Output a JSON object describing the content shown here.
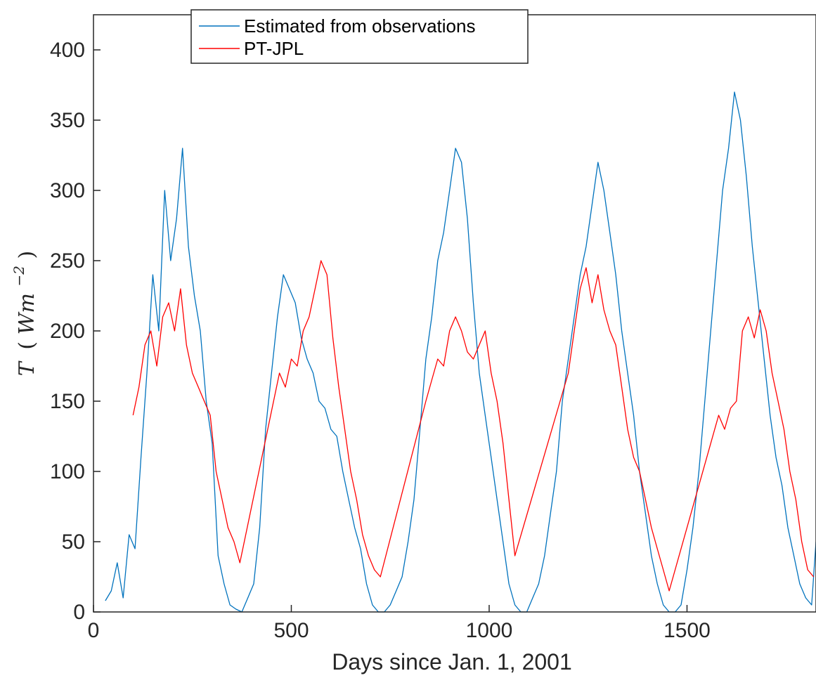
{
  "chart_data": {
    "type": "line",
    "title": "",
    "xlabel": "Days since Jan. 1, 2001",
    "ylabel": {
      "var": "T",
      "open": "(",
      "unit": "Wm",
      "exponent": "−2",
      "close": ")"
    },
    "xlim": [
      0,
      1826
    ],
    "ylim": [
      0,
      425
    ],
    "xticks": [
      0,
      500,
      1000,
      1500
    ],
    "yticks": [
      0,
      50,
      100,
      150,
      200,
      250,
      300,
      350,
      400
    ],
    "grid": false,
    "legend_position": "top-left",
    "series": [
      {
        "name": "Estimated from observations",
        "color": "#0072BD",
        "x": [
          30,
          45,
          60,
          75,
          90,
          105,
          120,
          135,
          150,
          165,
          180,
          195,
          210,
          225,
          240,
          255,
          270,
          285,
          300,
          315,
          330,
          345,
          360,
          375,
          390,
          405,
          420,
          435,
          450,
          465,
          480,
          495,
          510,
          525,
          540,
          555,
          570,
          585,
          600,
          615,
          630,
          645,
          660,
          675,
          690,
          705,
          720,
          735,
          750,
          765,
          780,
          795,
          810,
          825,
          840,
          855,
          870,
          885,
          900,
          915,
          930,
          945,
          960,
          975,
          990,
          1005,
          1020,
          1035,
          1050,
          1065,
          1080,
          1095,
          1110,
          1125,
          1140,
          1155,
          1170,
          1185,
          1200,
          1215,
          1230,
          1245,
          1260,
          1275,
          1290,
          1305,
          1320,
          1335,
          1350,
          1365,
          1380,
          1395,
          1410,
          1425,
          1440,
          1455,
          1470,
          1485,
          1500,
          1515,
          1530,
          1545,
          1560,
          1575,
          1590,
          1605,
          1620,
          1635,
          1650,
          1665,
          1680,
          1695,
          1710,
          1725,
          1740,
          1755,
          1770,
          1785,
          1800,
          1815,
          1826
        ],
        "y": [
          8,
          15,
          35,
          10,
          55,
          45,
          110,
          170,
          240,
          200,
          300,
          250,
          280,
          330,
          260,
          225,
          200,
          150,
          120,
          40,
          20,
          5,
          2,
          0,
          10,
          20,
          60,
          130,
          170,
          210,
          240,
          230,
          220,
          195,
          180,
          170,
          150,
          145,
          130,
          125,
          100,
          80,
          60,
          45,
          20,
          5,
          0,
          0,
          5,
          15,
          25,
          50,
          80,
          130,
          180,
          210,
          250,
          270,
          300,
          330,
          320,
          280,
          220,
          170,
          140,
          110,
          80,
          50,
          20,
          5,
          0,
          0,
          10,
          20,
          40,
          70,
          100,
          150,
          180,
          210,
          240,
          260,
          290,
          320,
          300,
          270,
          240,
          200,
          170,
          140,
          100,
          70,
          40,
          20,
          5,
          0,
          0,
          5,
          30,
          60,
          100,
          150,
          200,
          250,
          300,
          330,
          370,
          350,
          310,
          260,
          220,
          180,
          140,
          110,
          90,
          60,
          40,
          20,
          10,
          5,
          50
        ]
      },
      {
        "name": "PT-JPL",
        "color": "#FF0000",
        "x": [
          100,
          115,
          130,
          145,
          160,
          175,
          190,
          205,
          220,
          235,
          250,
          265,
          280,
          295,
          310,
          325,
          340,
          355,
          370,
          470,
          485,
          500,
          515,
          530,
          545,
          560,
          575,
          590,
          605,
          620,
          635,
          650,
          665,
          680,
          695,
          710,
          725,
          840,
          855,
          870,
          885,
          900,
          915,
          930,
          945,
          960,
          975,
          990,
          1005,
          1020,
          1035,
          1050,
          1065,
          1200,
          1215,
          1230,
          1245,
          1260,
          1275,
          1290,
          1305,
          1320,
          1335,
          1350,
          1365,
          1380,
          1395,
          1410,
          1425,
          1440,
          1455,
          1580,
          1595,
          1610,
          1625,
          1640,
          1655,
          1670,
          1685,
          1700,
          1715,
          1730,
          1745,
          1760,
          1775,
          1790,
          1805,
          1820
        ],
        "y": [
          140,
          160,
          190,
          200,
          175,
          210,
          220,
          200,
          230,
          190,
          170,
          160,
          150,
          140,
          100,
          80,
          60,
          50,
          35,
          170,
          160,
          180,
          175,
          200,
          210,
          230,
          250,
          240,
          195,
          160,
          130,
          100,
          80,
          55,
          40,
          30,
          25,
          150,
          165,
          180,
          175,
          200,
          210,
          200,
          185,
          180,
          190,
          200,
          170,
          150,
          120,
          80,
          40,
          170,
          200,
          230,
          245,
          220,
          240,
          215,
          200,
          190,
          160,
          130,
          110,
          100,
          80,
          60,
          45,
          30,
          15,
          140,
          130,
          145,
          150,
          200,
          210,
          195,
          215,
          200,
          170,
          150,
          130,
          100,
          80,
          50,
          30,
          25
        ]
      }
    ]
  }
}
